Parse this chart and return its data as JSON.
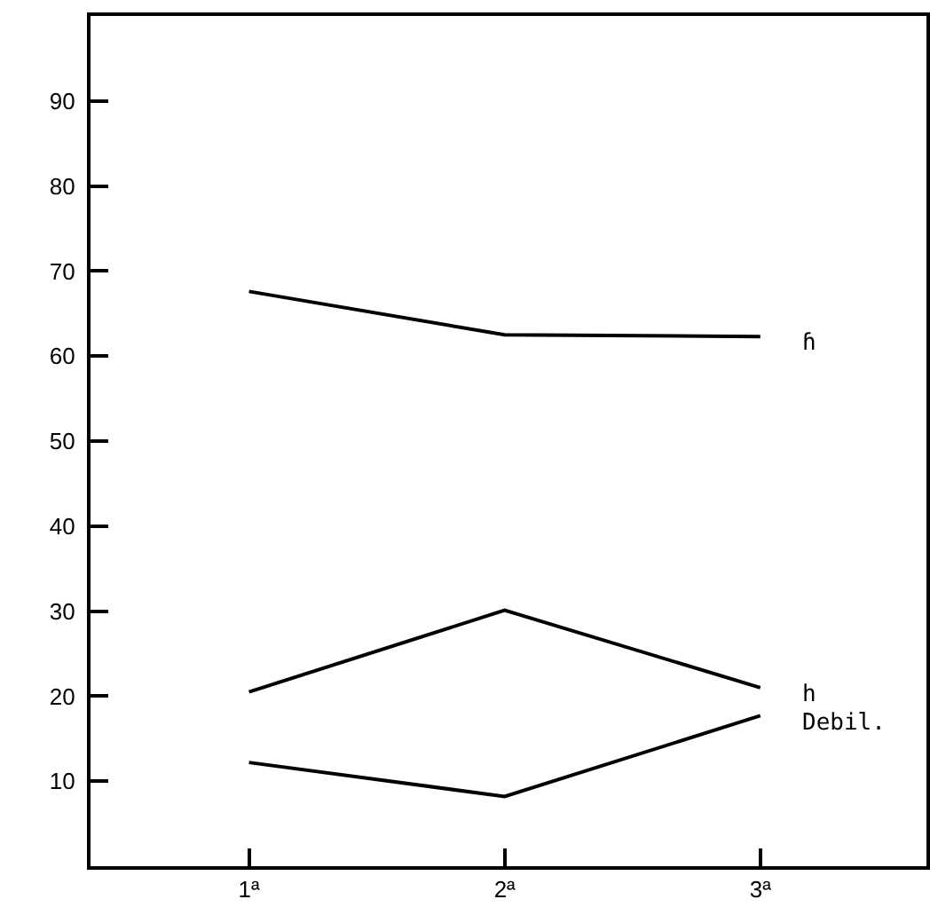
{
  "chart_data": {
    "type": "line",
    "categories": [
      "1ª",
      "2ª",
      "3ª"
    ],
    "ylim": [
      0,
      100
    ],
    "yticks": [
      10,
      20,
      30,
      40,
      50,
      60,
      70,
      80,
      90
    ],
    "grid": false,
    "legend": false,
    "marker": "none",
    "line_style": "solid",
    "series": [
      {
        "name": "ɦ",
        "color": "#000000",
        "values": [
          67.6,
          62.5,
          62.3
        ]
      },
      {
        "name": "h",
        "color": "#000000",
        "values": [
          20.5,
          30.1,
          21
        ]
      },
      {
        "name": "Debil.",
        "color": "#000000",
        "values": [
          12.2,
          8.2,
          17.7
        ]
      }
    ]
  }
}
